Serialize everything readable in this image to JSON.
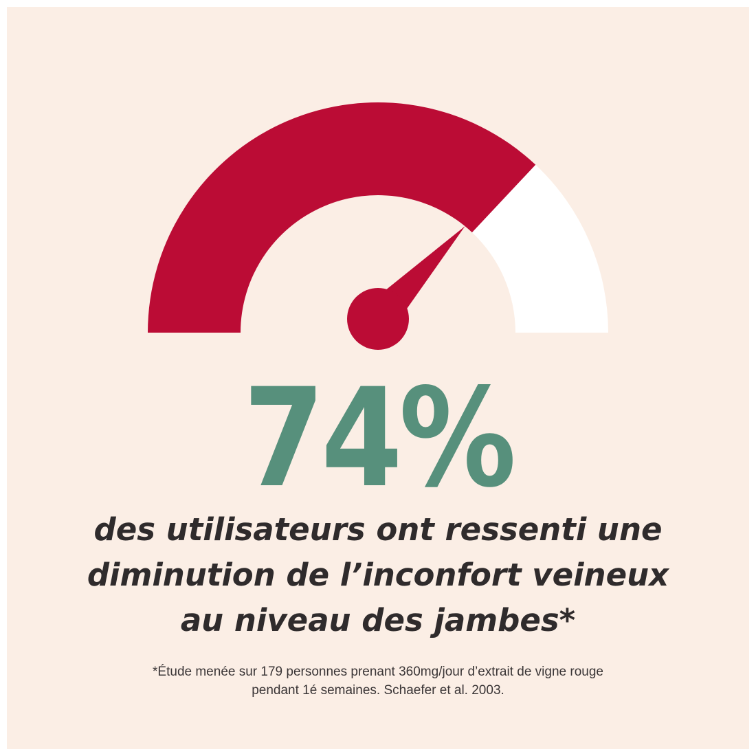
{
  "colors": {
    "background": "#fbeee5",
    "gauge_filled": "#bb0c35",
    "gauge_empty": "#ffffff",
    "needle": "#bb0c35",
    "percentage": "#57907c",
    "text": "#2f2b2c"
  },
  "gauge": {
    "fraction": 0.74
  },
  "stat": {
    "value": "74%"
  },
  "headline": {
    "line1": "des utilisateurs ont ressenti une",
    "line2": "diminution de l’inconfort veineux",
    "line3": "au niveau des jambes*"
  },
  "footnote": {
    "line1": "*Étude menée sur 179 personnes prenant 360mg/jour  d’extrait de vigne rouge",
    "line2": "pendant 1é semaines. Schaefer et al. 2003."
  }
}
